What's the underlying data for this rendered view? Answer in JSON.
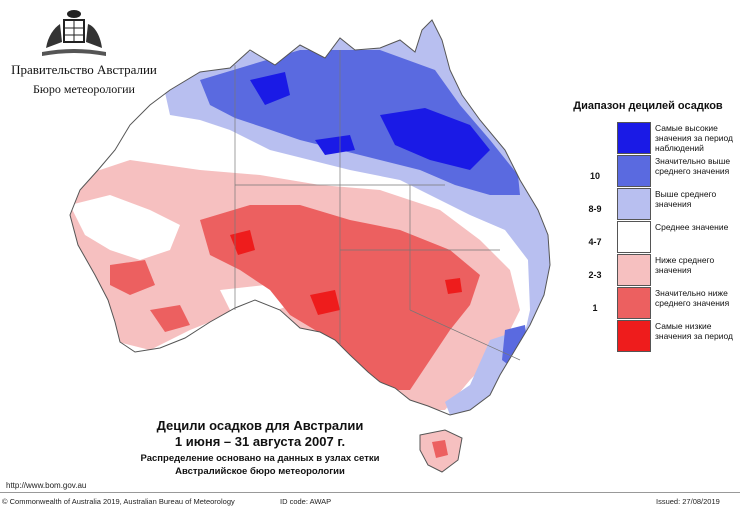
{
  "header": {
    "government": "Правительство Австралии",
    "bureau": "Бюро метеорологии"
  },
  "legend": {
    "title": "Диапазон децилей осадков",
    "items": [
      {
        "code": "",
        "label": "Самые высокие значения за период наблюдений",
        "color": "#1a1ae6"
      },
      {
        "code": "10",
        "label": "Значительно выше среднего значения",
        "color": "#5a6ae0"
      },
      {
        "code": "8-9",
        "label": "Выше среднего значения",
        "color": "#b8bff0"
      },
      {
        "code": "4-7",
        "label": "Среднее значение",
        "color": "#ffffff"
      },
      {
        "code": "2-3",
        "label": "Ниже среднего значения",
        "color": "#f6c0c0"
      },
      {
        "code": "1",
        "label": "Значительно ниже среднего значения",
        "color": "#ec6060"
      },
      {
        "code": "",
        "label": "Самые низкие значения за период",
        "color": "#ee1c1c"
      }
    ]
  },
  "caption": {
    "line1": "Децили осадков для Австралии",
    "line2": "1 июня – 31 августа 2007 г.",
    "line3": "Распределение основано на данных в узлах сетки",
    "line4": "Австралийское бюро метеорологии"
  },
  "footer": {
    "url": "http://www.bom.gov.au",
    "copyright": "© Commonwealth of Australia 2019, Australian Bureau of Meteorology",
    "id_code": "ID code: AWAP",
    "issued": "Issued: 27/08/2019"
  }
}
